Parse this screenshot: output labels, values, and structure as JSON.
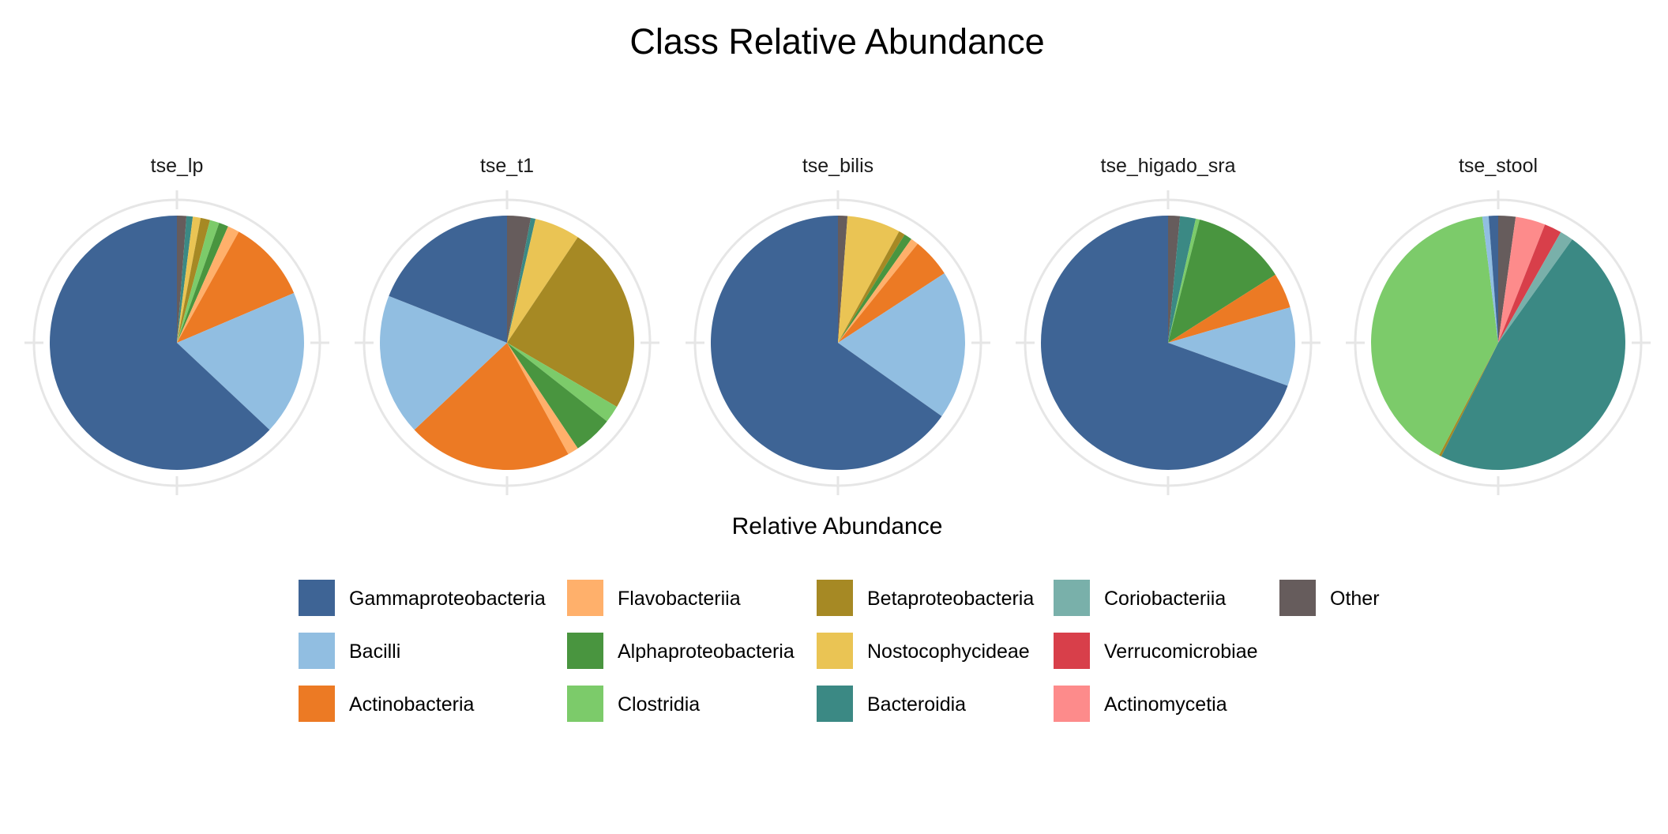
{
  "chart_data": {
    "type": "pie",
    "title": "Class Relative Abundance",
    "legend_title": "Relative Abundance",
    "legend_position": "bottom",
    "categories": [
      "Gammaproteobacteria",
      "Bacilli",
      "Actinobacteria",
      "Flavobacteriia",
      "Alphaproteobacteria",
      "Clostridia",
      "Betaproteobacteria",
      "Nostocophycideae",
      "Bacteroidia",
      "Coriobacteriia",
      "Verrucomicrobiae",
      "Actinomycetia",
      "Other"
    ],
    "colors": {
      "Gammaproteobacteria": "#3e6495",
      "Bacilli": "#91bee1",
      "Actinobacteria": "#ec7a24",
      "Flavobacteriia": "#ffb06b",
      "Alphaproteobacteria": "#49953f",
      "Clostridia": "#7ccb6a",
      "Betaproteobacteria": "#a68924",
      "Nostocophycideae": "#eac454",
      "Bacteroidia": "#3b8984",
      "Coriobacteriia": "#79b0aa",
      "Verrucomicrobiae": "#d83f4a",
      "Actinomycetia": "#fd8b8b",
      "Other": "#665c5c"
    },
    "pies": [
      {
        "name": "tse_lp",
        "slices": [
          {
            "label": "Other",
            "value": 0.012
          },
          {
            "label": "Bacteroidia",
            "value": 0.008
          },
          {
            "label": "Nostocophycideae",
            "value": 0.01
          },
          {
            "label": "Betaproteobacteria",
            "value": 0.012
          },
          {
            "label": "Clostridia",
            "value": 0.012
          },
          {
            "label": "Alphaproteobacteria",
            "value": 0.012
          },
          {
            "label": "Flavobacteriia",
            "value": 0.015
          },
          {
            "label": "Actinobacteria",
            "value": 0.105
          },
          {
            "label": "Bacilli",
            "value": 0.184
          },
          {
            "label": "Gammaproteobacteria",
            "value": 0.63
          }
        ]
      },
      {
        "name": "tse_t1",
        "slices": [
          {
            "label": "Other",
            "value": 0.03
          },
          {
            "label": "Bacteroidia",
            "value": 0.006
          },
          {
            "label": "Nostocophycideae",
            "value": 0.058
          },
          {
            "label": "Betaproteobacteria",
            "value": 0.24
          },
          {
            "label": "Clostridia",
            "value": 0.022
          },
          {
            "label": "Alphaproteobacteria",
            "value": 0.05
          },
          {
            "label": "Flavobacteriia",
            "value": 0.014
          },
          {
            "label": "Actinobacteria",
            "value": 0.21
          },
          {
            "label": "Bacilli",
            "value": 0.18
          },
          {
            "label": "Gammaproteobacteria",
            "value": 0.19
          }
        ]
      },
      {
        "name": "tse_bilis",
        "slices": [
          {
            "label": "Other",
            "value": 0.012
          },
          {
            "label": "Nostocophycideae",
            "value": 0.068
          },
          {
            "label": "Betaproteobacteria",
            "value": 0.008
          },
          {
            "label": "Alphaproteobacteria",
            "value": 0.01
          },
          {
            "label": "Flavobacteriia",
            "value": 0.01
          },
          {
            "label": "Actinobacteria",
            "value": 0.05
          },
          {
            "label": "Bacilli",
            "value": 0.19
          },
          {
            "label": "Gammaproteobacteria",
            "value": 0.652
          }
        ]
      },
      {
        "name": "tse_higado_sra",
        "slices": [
          {
            "label": "Other",
            "value": 0.015
          },
          {
            "label": "Bacteroidia",
            "value": 0.02
          },
          {
            "label": "Clostridia",
            "value": 0.005
          },
          {
            "label": "Alphaproteobacteria",
            "value": 0.12
          },
          {
            "label": "Actinobacteria",
            "value": 0.045
          },
          {
            "label": "Bacilli",
            "value": 0.1
          },
          {
            "label": "Gammaproteobacteria",
            "value": 0.695
          }
        ]
      },
      {
        "name": "tse_stool",
        "slices": [
          {
            "label": "Other",
            "value": 0.022
          },
          {
            "label": "Actinomycetia",
            "value": 0.038
          },
          {
            "label": "Verrucomicrobiae",
            "value": 0.022
          },
          {
            "label": "Coriobacteriia",
            "value": 0.017
          },
          {
            "label": "Bacteroidia",
            "value": 0.475
          },
          {
            "label": "Betaproteobacteria",
            "value": 0.003
          },
          {
            "label": "Clostridia",
            "value": 0.403
          },
          {
            "label": "Bacilli",
            "value": 0.008
          },
          {
            "label": "Gammaproteobacteria",
            "value": 0.012
          }
        ]
      }
    ]
  }
}
